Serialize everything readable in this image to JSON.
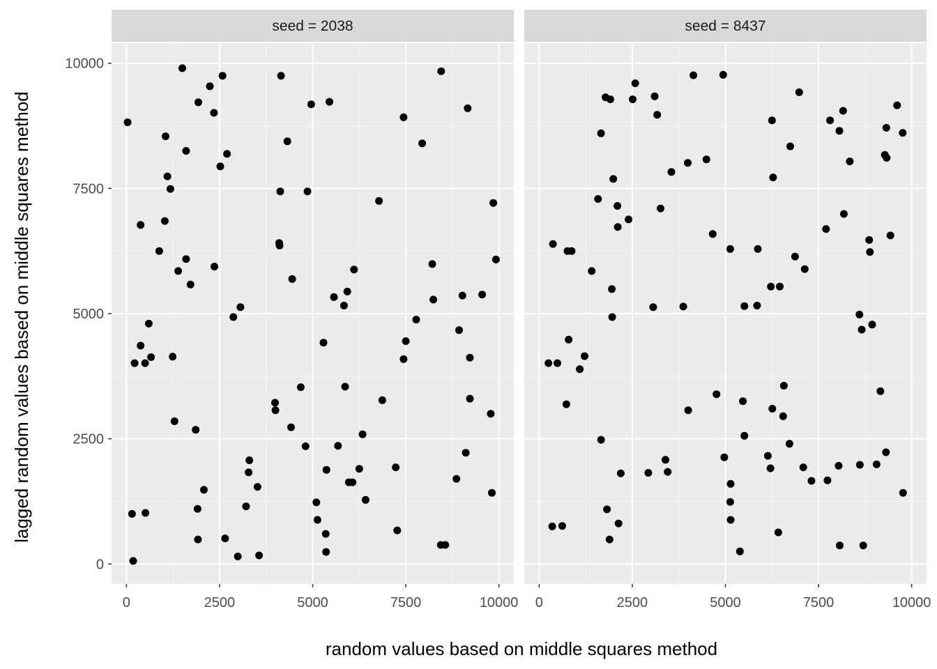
{
  "chart_data": {
    "type": "scatter",
    "xlabel": "random values based on middle squares method",
    "ylabel": "lagged random values based on middle squares method",
    "xlim": [
      -400,
      10400
    ],
    "ylim": [
      -400,
      10400
    ],
    "x_ticks": [
      0,
      2500,
      5000,
      7500,
      10000
    ],
    "y_ticks": [
      0,
      2500,
      5000,
      7500,
      10000
    ],
    "x_tick_labels": [
      "0",
      "2500",
      "5000",
      "7500",
      "10000"
    ],
    "y_tick_labels": [
      "0",
      "2500",
      "5000",
      "7500",
      "10000"
    ],
    "grid": true,
    "point_color": "#000000",
    "panel_background": "#ebebeb",
    "strip_background": "#d9d9d9",
    "panels": [
      {
        "strip": "seed = 2038",
        "points": [
          [
            30,
            8820
          ],
          [
            1500,
            9900
          ],
          [
            2240,
            9540
          ],
          [
            2580,
            9750
          ],
          [
            4150,
            9750
          ],
          [
            8450,
            9840
          ],
          [
            1930,
            9220
          ],
          [
            2350,
            9010
          ],
          [
            4960,
            9180
          ],
          [
            5450,
            9230
          ],
          [
            7440,
            8920
          ],
          [
            9160,
            9100
          ],
          [
            1050,
            8540
          ],
          [
            1600,
            8250
          ],
          [
            2700,
            8190
          ],
          [
            2520,
            7940
          ],
          [
            4320,
            8440
          ],
          [
            7940,
            8400
          ],
          [
            1100,
            7740
          ],
          [
            1180,
            7490
          ],
          [
            4130,
            7440
          ],
          [
            4860,
            7440
          ],
          [
            6780,
            7250
          ],
          [
            9850,
            7210
          ],
          [
            380,
            6770
          ],
          [
            1030,
            6850
          ],
          [
            880,
            6250
          ],
          [
            4100,
            6410
          ],
          [
            4110,
            6360
          ],
          [
            9920,
            6080
          ],
          [
            1390,
            5850
          ],
          [
            1600,
            6090
          ],
          [
            1720,
            5580
          ],
          [
            2360,
            5940
          ],
          [
            4450,
            5690
          ],
          [
            6110,
            5880
          ],
          [
            8210,
            5990
          ],
          [
            5930,
            5440
          ],
          [
            5570,
            5330
          ],
          [
            5840,
            5160
          ],
          [
            3060,
            5130
          ],
          [
            8240,
            5280
          ],
          [
            9020,
            5360
          ],
          [
            9550,
            5380
          ],
          [
            2870,
            4930
          ],
          [
            600,
            4800
          ],
          [
            7780,
            4880
          ],
          [
            8930,
            4670
          ],
          [
            380,
            4360
          ],
          [
            220,
            4010
          ],
          [
            500,
            4010
          ],
          [
            660,
            4130
          ],
          [
            1240,
            4140
          ],
          [
            5290,
            4420
          ],
          [
            7500,
            4450
          ],
          [
            7440,
            4090
          ],
          [
            9220,
            4120
          ],
          [
            4680,
            3530
          ],
          [
            5870,
            3540
          ],
          [
            3990,
            3220
          ],
          [
            4000,
            3070
          ],
          [
            6870,
            3270
          ],
          [
            9220,
            3300
          ],
          [
            9780,
            3000
          ],
          [
            1290,
            2850
          ],
          [
            1860,
            2680
          ],
          [
            4420,
            2730
          ],
          [
            6340,
            2590
          ],
          [
            4810,
            2350
          ],
          [
            5680,
            2360
          ],
          [
            3300,
            2070
          ],
          [
            9110,
            2220
          ],
          [
            3280,
            1830
          ],
          [
            5370,
            1880
          ],
          [
            6250,
            1900
          ],
          [
            7230,
            1930
          ],
          [
            3520,
            1540
          ],
          [
            2080,
            1480
          ],
          [
            5970,
            1630
          ],
          [
            6070,
            1630
          ],
          [
            8860,
            1700
          ],
          [
            9810,
            1420
          ],
          [
            3210,
            1150
          ],
          [
            1910,
            1100
          ],
          [
            5100,
            1230
          ],
          [
            6420,
            1280
          ],
          [
            150,
            1000
          ],
          [
            510,
            1020
          ],
          [
            5130,
            880
          ],
          [
            7270,
            670
          ],
          [
            5350,
            600
          ],
          [
            2650,
            510
          ],
          [
            1920,
            490
          ],
          [
            8440,
            380
          ],
          [
            8560,
            380
          ],
          [
            2990,
            150
          ],
          [
            3560,
            170
          ],
          [
            5360,
            240
          ],
          [
            180,
            60
          ]
        ]
      },
      {
        "strip": "seed = 8437",
        "points": [
          [
            4940,
            9770
          ],
          [
            4140,
            9760
          ],
          [
            2580,
            9600
          ],
          [
            6980,
            9420
          ],
          [
            1780,
            9320
          ],
          [
            1910,
            9280
          ],
          [
            2510,
            9280
          ],
          [
            3100,
            9340
          ],
          [
            3170,
            8970
          ],
          [
            9610,
            9160
          ],
          [
            8160,
            9050
          ],
          [
            7810,
            8860
          ],
          [
            6250,
            8860
          ],
          [
            8060,
            8650
          ],
          [
            9320,
            8710
          ],
          [
            9760,
            8610
          ],
          [
            1660,
            8600
          ],
          [
            6740,
            8340
          ],
          [
            4490,
            8080
          ],
          [
            3990,
            8010
          ],
          [
            8340,
            8040
          ],
          [
            9280,
            8170
          ],
          [
            9330,
            8110
          ],
          [
            3550,
            7830
          ],
          [
            1990,
            7690
          ],
          [
            6280,
            7720
          ],
          [
            1580,
            7290
          ],
          [
            2100,
            7150
          ],
          [
            3260,
            7100
          ],
          [
            8180,
            6990
          ],
          [
            2110,
            6730
          ],
          [
            2400,
            6880
          ],
          [
            7700,
            6690
          ],
          [
            4660,
            6590
          ],
          [
            9430,
            6560
          ],
          [
            370,
            6390
          ],
          [
            760,
            6250
          ],
          [
            870,
            6250
          ],
          [
            5130,
            6290
          ],
          [
            5870,
            6290
          ],
          [
            8860,
            6470
          ],
          [
            8880,
            6230
          ],
          [
            6870,
            6140
          ],
          [
            7130,
            5890
          ],
          [
            1410,
            5850
          ],
          [
            1950,
            5490
          ],
          [
            6220,
            5540
          ],
          [
            6460,
            5540
          ],
          [
            3060,
            5130
          ],
          [
            3870,
            5140
          ],
          [
            5510,
            5150
          ],
          [
            5850,
            5160
          ],
          [
            1960,
            4930
          ],
          [
            8600,
            4980
          ],
          [
            8660,
            4680
          ],
          [
            8940,
            4780
          ],
          [
            790,
            4480
          ],
          [
            1220,
            4150
          ],
          [
            250,
            4010
          ],
          [
            490,
            4010
          ],
          [
            1090,
            3890
          ],
          [
            6570,
            3560
          ],
          [
            4760,
            3390
          ],
          [
            9160,
            3450
          ],
          [
            5470,
            3250
          ],
          [
            730,
            3190
          ],
          [
            6260,
            3100
          ],
          [
            6550,
            2950
          ],
          [
            4000,
            3070
          ],
          [
            5510,
            2560
          ],
          [
            6720,
            2400
          ],
          [
            1660,
            2480
          ],
          [
            9310,
            2230
          ],
          [
            4970,
            2130
          ],
          [
            6140,
            2160
          ],
          [
            3390,
            2080
          ],
          [
            9060,
            1990
          ],
          [
            8040,
            1960
          ],
          [
            8610,
            1980
          ],
          [
            6210,
            1910
          ],
          [
            7090,
            1930
          ],
          [
            2190,
            1810
          ],
          [
            2930,
            1820
          ],
          [
            3450,
            1840
          ],
          [
            7310,
            1660
          ],
          [
            7740,
            1670
          ],
          [
            5140,
            1600
          ],
          [
            9770,
            1420
          ],
          [
            5130,
            1240
          ],
          [
            1820,
            1090
          ],
          [
            5140,
            880
          ],
          [
            2130,
            810
          ],
          [
            350,
            750
          ],
          [
            620,
            760
          ],
          [
            6420,
            630
          ],
          [
            1890,
            490
          ],
          [
            8070,
            370
          ],
          [
            8700,
            370
          ],
          [
            5390,
            250
          ]
        ]
      }
    ]
  }
}
